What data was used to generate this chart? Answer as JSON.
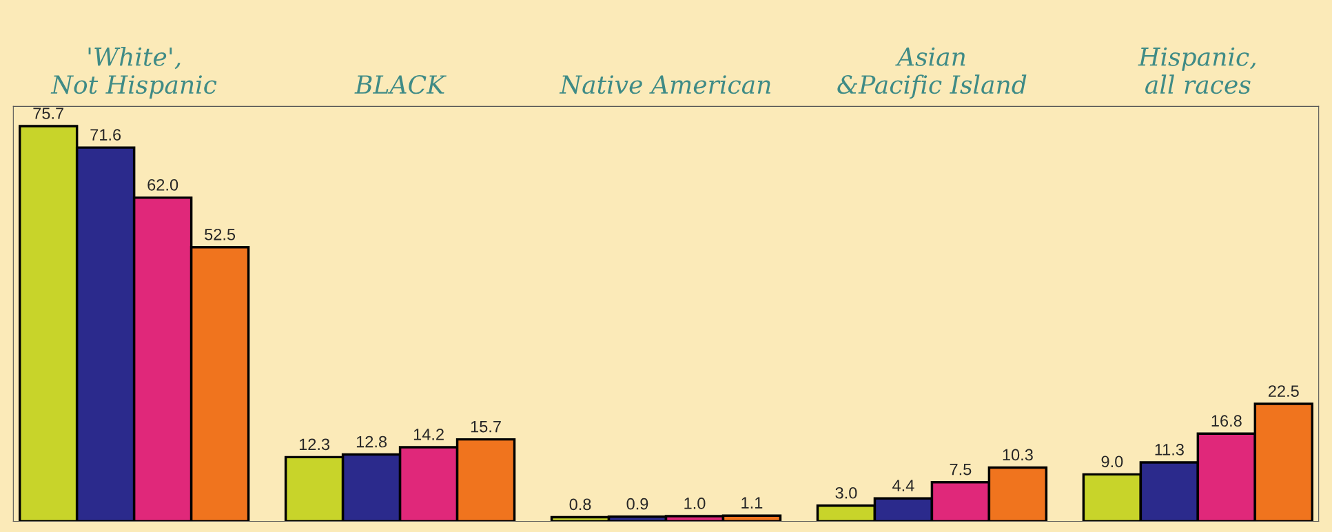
{
  "chart_data": {
    "type": "bar",
    "categories": [
      "'White',\nNot Hispanic",
      "BLACK",
      "Native American",
      "Asian\n&Pacific Island",
      "Hispanic,\nall races"
    ],
    "series": [
      {
        "color": "#c8d42a",
        "values": [
          75.7,
          12.3,
          0.8,
          3.0,
          9.0
        ],
        "value_labels": [
          "75.7",
          "12.3",
          "0.8",
          "3.0",
          "9.0"
        ]
      },
      {
        "color": "#2b2a8c",
        "values": [
          71.6,
          12.8,
          0.9,
          4.4,
          11.3
        ],
        "value_labels": [
          "71.6",
          "12.8",
          "0.9",
          "4.4",
          "11.3"
        ]
      },
      {
        "color": "#e0287a",
        "values": [
          62.0,
          14.2,
          1.0,
          7.5,
          16.8
        ],
        "value_labels": [
          "62.0",
          "14.2",
          "1.0",
          "7.5",
          "16.8"
        ]
      },
      {
        "color": "#f0741e",
        "values": [
          52.5,
          15.7,
          1.1,
          10.3,
          22.5
        ],
        "value_labels": [
          "52.5",
          "15.7",
          "1.1",
          "10.3",
          "22.5"
        ]
      }
    ],
    "grid": false,
    "legend": false
  }
}
